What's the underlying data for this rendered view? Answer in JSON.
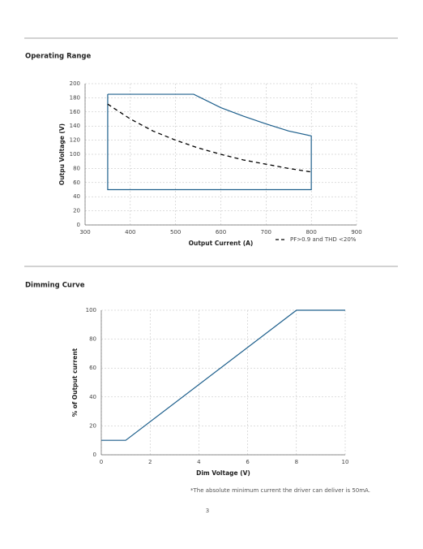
{
  "headings": [
    "Operating Range",
    "Dimming Curve"
  ],
  "chart_data": [
    {
      "type": "line",
      "x_label": "Output Current (A)",
      "y_label": "Outpu Voltage (V)",
      "xlim": [
        300,
        900
      ],
      "xticks": [
        300,
        400,
        500,
        600,
        700,
        800,
        900
      ],
      "ylim": [
        0,
        200
      ],
      "yticks": [
        0,
        20,
        40,
        60,
        80,
        100,
        120,
        140,
        160,
        180,
        200
      ],
      "grid": true,
      "legend": "bottom-right",
      "series": [
        {
          "color": "#1d5f8c",
          "dash": false,
          "x": [
            350,
            540,
            600,
            650,
            700,
            750,
            800,
            800,
            350,
            350
          ],
          "values": [
            185,
            185,
            166,
            154,
            143,
            133,
            126,
            50,
            50,
            185
          ]
        },
        {
          "name": "PF>0.9 and THD <20%",
          "color": "#000000",
          "dash": true,
          "x": [
            350,
            400,
            450,
            500,
            550,
            600,
            650,
            700,
            750,
            800
          ],
          "values": [
            171,
            150,
            133,
            120,
            109,
            100,
            92,
            86,
            80,
            75
          ]
        }
      ]
    },
    {
      "type": "line",
      "x_label": "Dim Voltage (V)",
      "y_label": "% of Output current",
      "xlim": [
        0,
        10
      ],
      "xticks": [
        0,
        2,
        4,
        6,
        8,
        10
      ],
      "ylim": [
        0,
        100
      ],
      "yticks": [
        0,
        20,
        40,
        60,
        80,
        100
      ],
      "grid": true,
      "series": [
        {
          "color": "#1d5f8c",
          "dash": false,
          "x": [
            0,
            1,
            8,
            10
          ],
          "values": [
            10,
            10,
            100,
            100
          ]
        }
      ]
    }
  ],
  "footnote": "*The absolute minimum current the driver can deliver is 50mA.",
  "page_number": "3"
}
